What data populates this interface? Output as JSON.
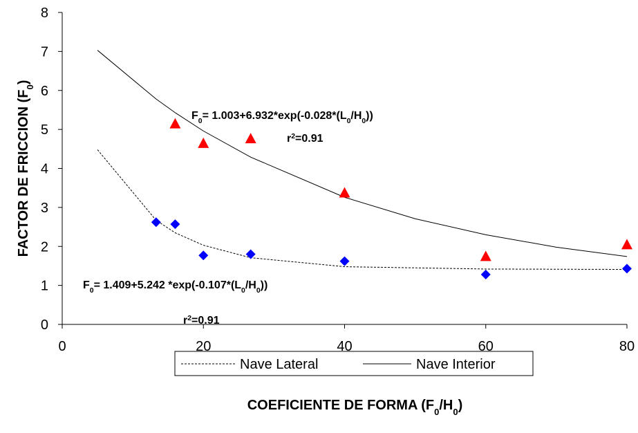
{
  "chart_data": {
    "type": "scatter",
    "x_label": {
      "parts": [
        "COEFICIENTE DE FORMA (F",
        "0",
        "/H",
        "0",
        ")"
      ],
      "script": "sub"
    },
    "y_label": {
      "parts": [
        "FACTOR DE FRICCION (F",
        "0",
        ")"
      ],
      "script": "sub"
    },
    "xlim": [
      0,
      80
    ],
    "xticks": [
      0,
      20,
      40,
      60,
      80
    ],
    "ylim": [
      0,
      8
    ],
    "yticks": [
      0,
      1,
      2,
      3,
      4,
      5,
      6,
      7,
      8
    ],
    "series": [
      {
        "name": "Nave Lateral",
        "color": "#0000ff",
        "marker": "diamond",
        "line": "dotted",
        "x": [
          13.3,
          16,
          20,
          26.7,
          40,
          60,
          80
        ],
        "values": [
          2.62,
          2.57,
          1.77,
          1.8,
          1.62,
          1.28,
          1.43
        ],
        "fit_x": [
          5,
          13.3,
          16,
          20,
          26.7,
          40,
          60,
          80
        ],
        "fit_values": [
          4.48,
          2.67,
          2.35,
          2.03,
          1.71,
          1.48,
          1.42,
          1.41
        ]
      },
      {
        "name": "Nave Interior",
        "color": "#ff0000",
        "marker": "triangle",
        "line": "solid",
        "x": [
          16,
          20,
          26.7,
          40,
          60,
          80
        ],
        "values": [
          5.15,
          4.65,
          4.77,
          3.38,
          1.75,
          2.05
        ],
        "fit_x": [
          5,
          13.3,
          16,
          20,
          26.7,
          40,
          50,
          60,
          70,
          80
        ],
        "fit_values": [
          7.03,
          5.78,
          5.43,
          4.96,
          4.29,
          3.26,
          2.71,
          2.3,
          1.98,
          1.74
        ]
      }
    ],
    "annotations": [
      {
        "parts": [
          "F",
          "0",
          "= 1.003+6.932*exp(-0.028*(L",
          "0",
          "/H",
          "0",
          "))"
        ],
        "script": "sub"
      },
      {
        "parts": [
          "r",
          "2",
          "=0.91"
        ],
        "script": "super"
      },
      {
        "parts": [
          "F",
          "0",
          "= 1.409+5.242 *exp(-0.107*(L",
          "0",
          "/H",
          "0",
          "))"
        ],
        "script": "sub"
      },
      {
        "parts": [
          "r",
          "2",
          "=0.91"
        ],
        "script": "super"
      }
    ]
  }
}
